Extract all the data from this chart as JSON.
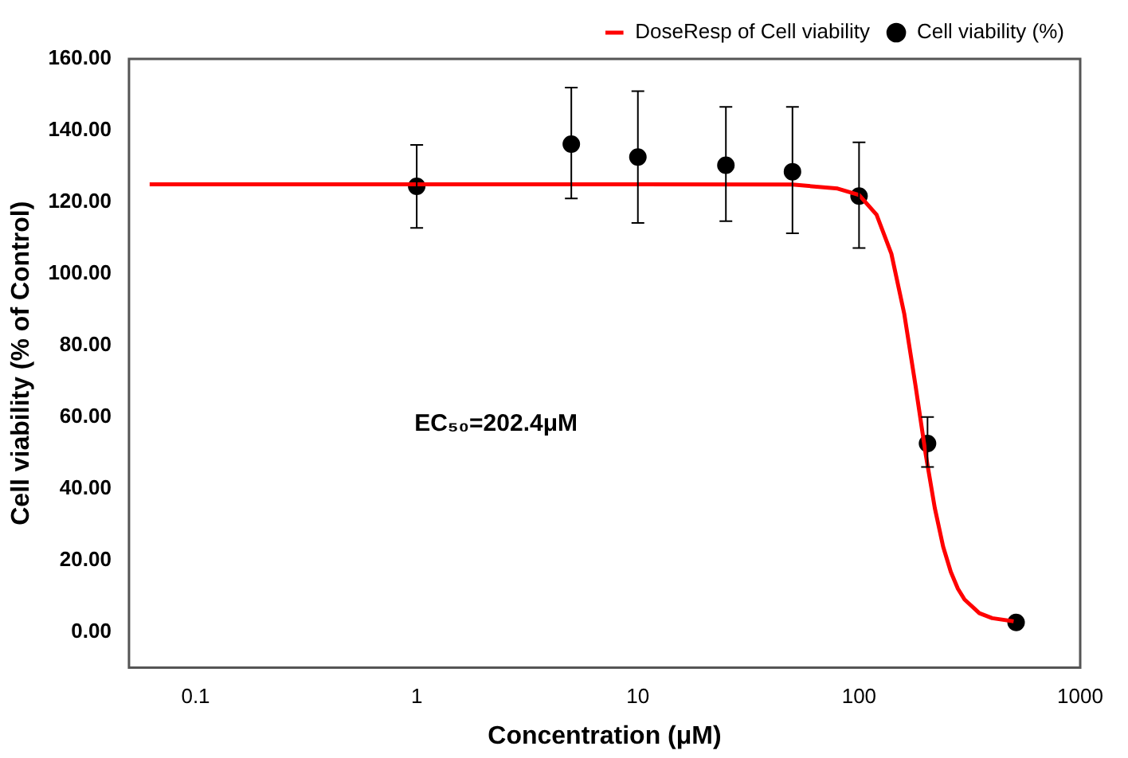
{
  "chart_data": {
    "type": "scatter",
    "xlabel": "Concentration (μM)",
    "ylabel": "Cell viability (% of Control)",
    "log": "x",
    "xlim": [
      0.05,
      1000
    ],
    "xticks": [
      0.1,
      1,
      10,
      100,
      1000
    ],
    "ylim": [
      -10,
      160
    ],
    "yticks": [
      {
        "value": 0,
        "label": "0.00"
      },
      {
        "value": 20,
        "label": "20.00"
      },
      {
        "value": 40,
        "label": "40.00"
      },
      {
        "value": 60,
        "label": "60.00"
      },
      {
        "value": 80,
        "label": "80.00"
      },
      {
        "value": 100,
        "label": "100.00"
      },
      {
        "value": 120,
        "label": "120.00"
      },
      {
        "value": 140,
        "label": "140.00"
      },
      {
        "value": 160,
        "label": "160.00"
      }
    ],
    "grid": false,
    "legend": "top right",
    "marker": "circle",
    "annotations": [
      "EC₅₀=202.4μM"
    ],
    "series": [
      {
        "name": "Cell viability (%)",
        "color": "#000000",
        "x": [
          1,
          5,
          10,
          25,
          50,
          100,
          204,
          513
        ],
        "values": [
          124.4,
          136.2,
          132.6,
          130.3,
          128.5,
          121.7,
          52.6,
          2.6
        ],
        "errors": [
          [
            112.8,
            136
          ],
          [
            121,
            152
          ],
          [
            114.2,
            151
          ],
          [
            114.7,
            146.6
          ],
          [
            111.3,
            146.6
          ],
          [
            107.2,
            136.7
          ],
          [
            46,
            60
          ],
          null
        ]
      },
      {
        "name": "DoseResp of Cell viability",
        "type": "line",
        "color": "#ff0000",
        "marker": "none",
        "line_style": "solid",
        "x": [
          0.062,
          1,
          10,
          50,
          80,
          100,
          120,
          140,
          160,
          180,
          200,
          220,
          240,
          260,
          280,
          300,
          350,
          400,
          500
        ],
        "values": [
          125,
          125,
          125,
          124.9,
          123.8,
          122,
          116.5,
          105.6,
          88.9,
          68.8,
          49.7,
          34.6,
          23.8,
          16.7,
          12,
          9,
          5.2,
          3.8,
          2.9
        ]
      }
    ]
  }
}
